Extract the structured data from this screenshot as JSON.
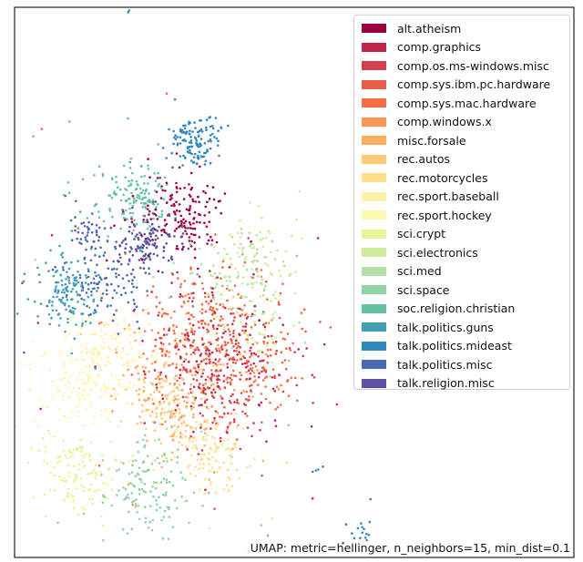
{
  "chart_data": {
    "type": "scatter",
    "title": "",
    "xlabel": "",
    "ylabel": "",
    "xlim": [
      0,
      100
    ],
    "ylim": [
      0,
      100
    ],
    "grid": false,
    "legend_position": "top-right",
    "annotation": "UMAP: metric=hellinger, n_neighbors=15, min_dist=0.1",
    "series": [
      {
        "name": "alt.atheism",
        "color": "#9e0142",
        "clusters": [
          {
            "cx": 30,
            "cy": 62,
            "r": 3.6,
            "n": 170
          }
        ]
      },
      {
        "name": "comp.graphics",
        "color": "#c0264a",
        "clusters": [
          {
            "cx": 36,
            "cy": 36,
            "r": 7,
            "n": 160
          }
        ]
      },
      {
        "name": "comp.os.ms-windows.misc",
        "color": "#d53e4f",
        "clusters": [
          {
            "cx": 38,
            "cy": 32,
            "r": 6,
            "n": 150
          }
        ]
      },
      {
        "name": "comp.sys.ibm.pc.hardware",
        "color": "#e95c47",
        "clusters": [
          {
            "cx": 37,
            "cy": 38,
            "r": 6,
            "n": 140
          }
        ]
      },
      {
        "name": "comp.sys.mac.hardware",
        "color": "#f46d43",
        "clusters": [
          {
            "cx": 34,
            "cy": 42,
            "r": 6,
            "n": 150
          },
          {
            "cx": 45,
            "cy": 32,
            "r": 3,
            "n": 40
          }
        ]
      },
      {
        "name": "comp.windows.x",
        "color": "#fa9656",
        "clusters": [
          {
            "cx": 33,
            "cy": 35,
            "r": 6,
            "n": 110
          }
        ]
      },
      {
        "name": "misc.forsale",
        "color": "#fdae61",
        "clusters": [
          {
            "cx": 29,
            "cy": 30,
            "r": 6,
            "n": 100
          }
        ]
      },
      {
        "name": "rec.autos",
        "color": "#fdca79",
        "clusters": [
          {
            "cx": 27,
            "cy": 27,
            "r": 3.5,
            "n": 110
          }
        ]
      },
      {
        "name": "rec.motorcycles",
        "color": "#fee08b",
        "clusters": [
          {
            "cx": 35,
            "cy": 19,
            "r": 3.5,
            "n": 120
          }
        ]
      },
      {
        "name": "rec.sport.baseball",
        "color": "#fff1a8",
        "clusters": [
          {
            "cx": 17,
            "cy": 38,
            "r": 4,
            "n": 130
          }
        ]
      },
      {
        "name": "rec.sport.hockey",
        "color": "#fbf8b0",
        "clusters": [
          {
            "cx": 12,
            "cy": 31,
            "r": 4,
            "n": 130
          }
        ]
      },
      {
        "name": "sci.crypt",
        "color": "#e6f598",
        "clusters": [
          {
            "cx": 11.5,
            "cy": 16,
            "r": 3.5,
            "n": 130
          }
        ]
      },
      {
        "name": "sci.electronics",
        "color": "#d1ec9c",
        "clusters": [
          {
            "cx": 43,
            "cy": 54,
            "r": 4,
            "n": 80
          },
          {
            "cx": 44,
            "cy": 41,
            "r": 3,
            "n": 40
          }
        ]
      },
      {
        "name": "sci.med",
        "color": "#b3e0a6",
        "clusters": [
          {
            "cx": 40,
            "cy": 52,
            "r": 5,
            "n": 90
          }
        ]
      },
      {
        "name": "sci.space",
        "color": "#8fd2a4",
        "clusters": [
          {
            "cx": 24,
            "cy": 12,
            "r": 4,
            "n": 140
          }
        ]
      },
      {
        "name": "soc.religion.christian",
        "color": "#66c2a5",
        "clusters": [
          {
            "cx": 22,
            "cy": 65,
            "r": 3.2,
            "n": 150
          }
        ]
      },
      {
        "name": "talk.politics.guns",
        "color": "#439fb5",
        "clusters": [
          {
            "cx": 9.5,
            "cy": 48,
            "r": 3.2,
            "n": 150
          }
        ]
      },
      {
        "name": "talk.politics.mideast",
        "color": "#3288bd",
        "clusters": [
          {
            "cx": 32,
            "cy": 76,
            "r": 2.2,
            "n": 130
          },
          {
            "cx": 62,
            "cy": 5,
            "r": 1,
            "n": 15
          },
          {
            "cx": 54,
            "cy": 16,
            "r": 0.3,
            "n": 4
          },
          {
            "cx": 20.5,
            "cy": 99.2,
            "r": 0.2,
            "n": 2
          }
        ]
      },
      {
        "name": "talk.politics.misc",
        "color": "#4a69b2",
        "clusters": [
          {
            "cx": 17,
            "cy": 51,
            "r": 4,
            "n": 140
          },
          {
            "cx": 13,
            "cy": 59,
            "r": 2,
            "n": 30
          }
        ]
      },
      {
        "name": "talk.religion.misc",
        "color": "#5e4fa2",
        "clusters": [
          {
            "cx": 24,
            "cy": 57,
            "r": 2.5,
            "n": 110
          }
        ]
      }
    ]
  }
}
